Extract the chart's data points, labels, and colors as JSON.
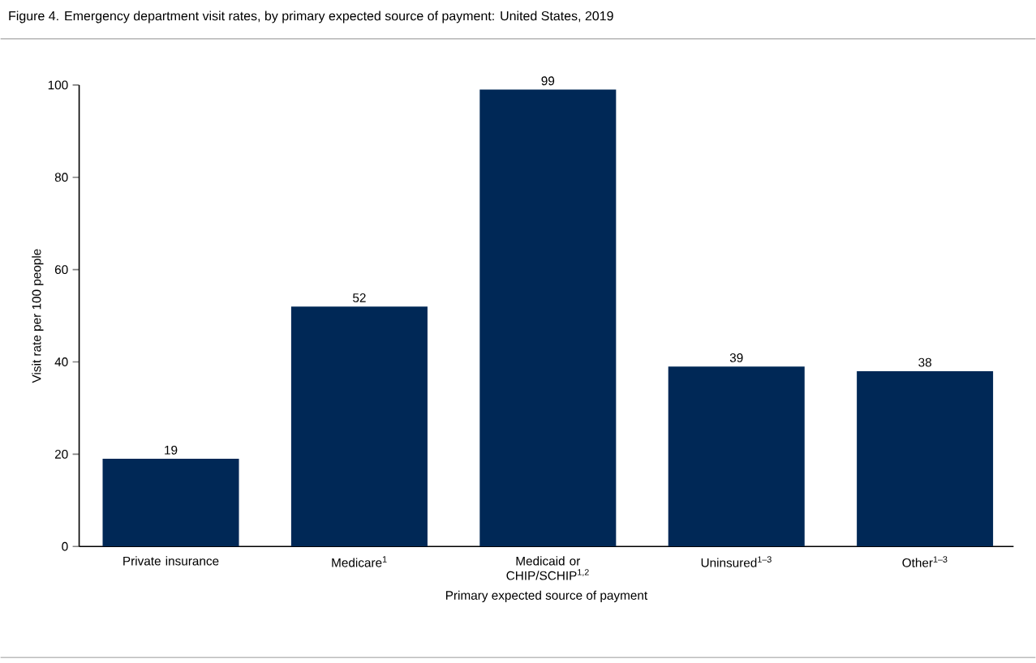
{
  "chart_data": {
    "type": "bar",
    "title": "Figure 4. Emergency department visit rates, by primary expected source of payment: United States, 2019",
    "xlabel": "Primary expected source of payment",
    "ylabel": "Visit rate per 100 people",
    "categories": [
      "Private insurance",
      "Medicare$^{1}$",
      "Medicaid or CHIP/SCHIP$^{1,2}$",
      "Uninsured$^{1–3}$",
      "Other$^{1–3}$"
    ],
    "values": [
      19,
      52,
      99,
      39,
      38
    ],
    "color": "#002856",
    "ylim": [
      0,
      100
    ],
    "yticks": [
      0,
      20,
      40,
      60,
      80,
      100
    ],
    "data_labels": true,
    "grid": false
  }
}
